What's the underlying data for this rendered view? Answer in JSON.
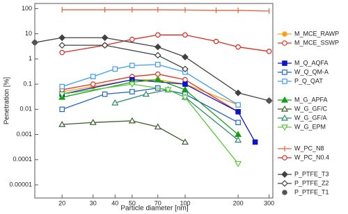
{
  "chart_data": {
    "type": "line",
    "x_label": "Particle diameter [nm]",
    "y_label": "Penetration [%]",
    "xscale": "log",
    "yscale": "log",
    "xlim": [
      14,
      315
    ],
    "ylim": [
      3e-06,
      160
    ],
    "xticks": [
      20,
      30,
      40,
      50,
      70,
      100,
      200,
      300
    ],
    "yticks": [
      1e-05,
      0.0001,
      0.001,
      0.01,
      0.1,
      1,
      10,
      100
    ],
    "series": [
      {
        "name": "M_MCE_RAWP",
        "color": "#f7a21b",
        "marker": "circle",
        "filled": true,
        "line": true,
        "x": [
          20,
          30,
          50,
          70,
          100,
          200
        ],
        "values": [
          0.05,
          0.08,
          0.15,
          0.15,
          0.1,
          0.015
        ]
      },
      {
        "name": "M_MCE_SSWP",
        "color": "#e0301e",
        "marker": "circle",
        "filled": false,
        "line": true,
        "x": [
          20,
          30,
          50,
          70,
          100,
          200
        ],
        "values": [
          0.06,
          0.1,
          0.2,
          0.25,
          0.15,
          0.008
        ]
      },
      {
        "name": "M_Q_AQFA",
        "color": "#0a14c8",
        "marker": "square",
        "filled": true,
        "line": true,
        "x": [
          20,
          50,
          100,
          200,
          250
        ],
        "values": [
          0.04,
          0.15,
          0.1,
          0.008,
          0.0005
        ]
      },
      {
        "name": "W_Q_QM-A",
        "color": "#1e64c0",
        "marker": "square",
        "filled": false,
        "line": true,
        "x": [
          20,
          35,
          50,
          70,
          100,
          200
        ],
        "values": [
          0.01,
          0.04,
          0.05,
          0.07,
          0.04,
          0.003
        ]
      },
      {
        "name": "P_Q_QAT",
        "color": "#3a9cf0",
        "marker": "square",
        "filled": false,
        "line": true,
        "x": [
          20,
          30,
          40,
          50,
          70,
          100,
          200
        ],
        "values": [
          0.08,
          0.2,
          0.4,
          0.55,
          0.6,
          0.3,
          0.015
        ]
      },
      {
        "name": "M_G_APFA",
        "color": "#12a012",
        "marker": "triangle",
        "filled": true,
        "line": true,
        "x": [
          20,
          50,
          70,
          100,
          200
        ],
        "values": [
          0.03,
          0.12,
          0.15,
          0.06,
          0.001
        ]
      },
      {
        "name": "W_G_GF/C",
        "color": "#3a5a28",
        "marker": "triangle",
        "filled": false,
        "line": true,
        "x": [
          20,
          30,
          50,
          70,
          100
        ],
        "values": [
          0.0025,
          0.003,
          0.0035,
          0.002,
          0.0005
        ]
      },
      {
        "name": "W_G_GF/A",
        "color": "#2a8a6a",
        "marker": "triangle",
        "filled": false,
        "line": true,
        "x": [
          40,
          60,
          80,
          100,
          200
        ],
        "values": [
          0.018,
          0.04,
          0.06,
          0.03,
          0.0006
        ]
      },
      {
        "name": "W_G_EPM",
        "color": "#5cc83a",
        "marker": "triangle-down",
        "filled": false,
        "line": true,
        "x": [
          20,
          50,
          80,
          100,
          200
        ],
        "values": [
          0.04,
          0.1,
          0.06,
          0.03,
          7e-05
        ]
      },
      {
        "name": "W_PC_N8",
        "color": "#e8603c",
        "marker": "tick",
        "filled": false,
        "line": true,
        "x": [
          20,
          35,
          50,
          70,
          100,
          150,
          200,
          300
        ],
        "values": [
          90,
          90,
          90,
          90,
          88,
          85,
          85,
          80
        ]
      },
      {
        "name": "W_PC_N0.4",
        "color": "#d8281e",
        "marker": "circle",
        "filled": false,
        "line": true,
        "x": [
          20,
          35,
          50,
          70,
          100,
          150,
          200,
          300
        ],
        "values": [
          1.8,
          3.5,
          6,
          9,
          9,
          5,
          3,
          2
        ]
      },
      {
        "name": "P_PTFE_T3",
        "color": "#404040",
        "marker": "diamond",
        "filled": true,
        "line": true,
        "x": [
          14,
          20,
          35,
          70,
          100,
          200,
          300
        ],
        "values": [
          4.5,
          7,
          7,
          3,
          1.2,
          0.045,
          0.022
        ]
      },
      {
        "name": "P_PTFE_Z2",
        "color": "#404040",
        "marker": "diamond",
        "filled": false,
        "line": true,
        "x": [
          20,
          35,
          70,
          100
        ],
        "values": [
          3.5,
          3.5,
          1.4,
          0.4
        ]
      },
      {
        "name": "P_PTFE_T1",
        "color": "#555555",
        "marker": "circle",
        "filled": true,
        "line": false,
        "x": [
          14,
          300
        ],
        "values": [
          4.5,
          0.022
        ]
      }
    ]
  }
}
